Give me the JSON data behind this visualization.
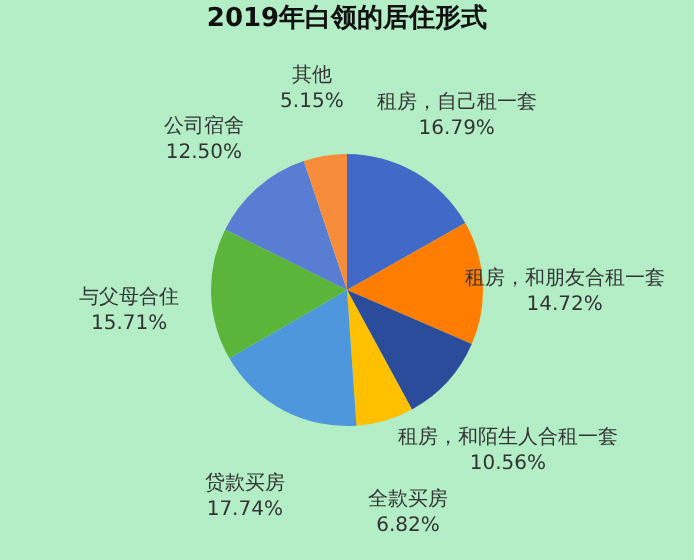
{
  "chart_data": {
    "type": "pie",
    "title": "2019年白领的居住形式",
    "categories": [
      "租房，自己租一套",
      "租房，和朋友合租一套",
      "租房，和陌生人合租一套",
      "全款买房",
      "贷款买房",
      "与父母合住",
      "公司宿舍",
      "其他"
    ],
    "values": [
      16.79,
      14.72,
      10.56,
      6.82,
      17.74,
      15.71,
      12.5,
      5.15
    ],
    "value_labels": [
      "16.79%",
      "14.72%",
      "10.56%",
      "6.82%",
      "17.74%",
      "15.71%",
      "12.50%",
      "5.15%"
    ],
    "colors": [
      "#4169c8",
      "#ff7d00",
      "#2b4b9b",
      "#ffc000",
      "#4e97dc",
      "#5ab53a",
      "#5a7dd4",
      "#f78d3a"
    ],
    "legend": false
  }
}
